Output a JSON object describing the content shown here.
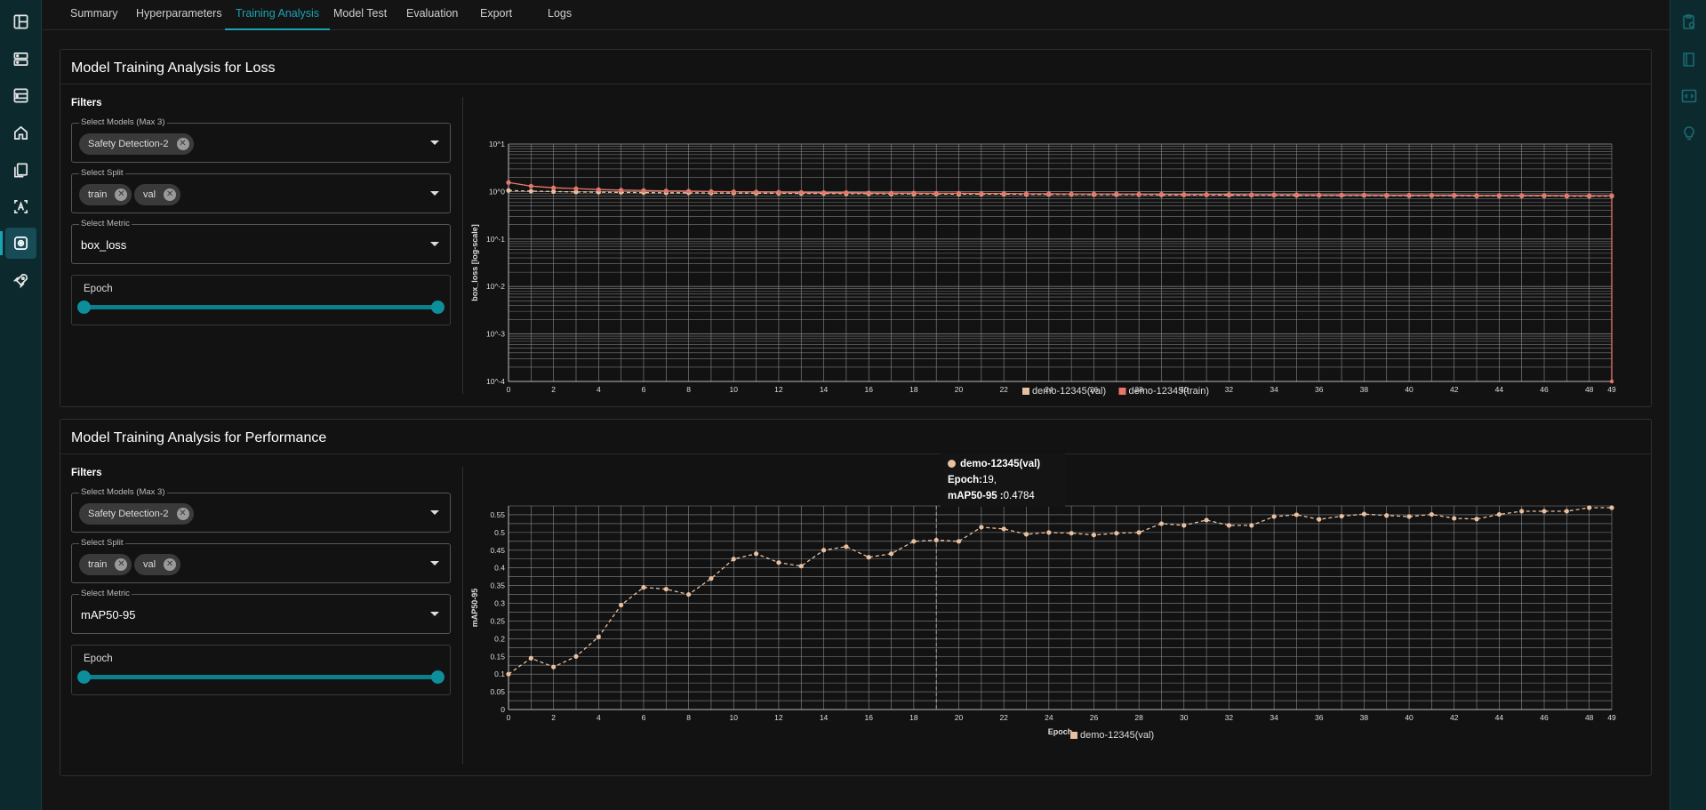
{
  "nav": {
    "tabs": [
      "Summary",
      "Hyperparameters",
      "Training Analysis",
      "Model Test",
      "Evaluation",
      "Export",
      "Logs"
    ],
    "active_tab": "Training Analysis"
  },
  "sidebar": {
    "icons": [
      "layout-icon",
      "server-icon",
      "database-icon",
      "home-icon",
      "documents-icon",
      "annotate-icon",
      "model-training-icon",
      "rocket-icon"
    ],
    "active": "model-training-icon"
  },
  "rightbar": {
    "icons": [
      "clipboard-settings-icon",
      "book-icon",
      "code-window-icon",
      "lightbulb-icon"
    ]
  },
  "loss_panel": {
    "title": "Model Training Analysis for Loss",
    "filters_label": "Filters",
    "models_label": "Select Models (Max 3)",
    "models": [
      "Safety Detection-2"
    ],
    "split_label": "Select Split",
    "splits": [
      "train",
      "val"
    ],
    "metric_label": "Select Metric",
    "metric_value": "box_loss",
    "epoch_label": "Epoch"
  },
  "perf_panel": {
    "title": "Model Training Analysis for Performance",
    "filters_label": "Filters",
    "models_label": "Select Models (Max 3)",
    "models": [
      "Safety Detection-2"
    ],
    "split_label": "Select Split",
    "splits": [
      "train",
      "val"
    ],
    "metric_label": "Select Metric",
    "metric_value": "mAP50-95",
    "epoch_label": "Epoch"
  },
  "colors": {
    "accent": "#1aa3b3",
    "val_series": "#e8c0a0",
    "train_series": "#e8776a"
  },
  "chart_data": [
    {
      "type": "line",
      "title": "",
      "xlabel": "Epoch",
      "ylabel": "box_loss [log-scale]",
      "yscale": "log",
      "ylim": [
        0.0001,
        10
      ],
      "y_ticks": [
        "10^1",
        "10^0",
        "10^-1",
        "10^-2",
        "10^-3",
        "10^-4"
      ],
      "x_ticks": [
        0,
        2,
        4,
        6,
        8,
        10,
        12,
        14,
        16,
        18,
        20,
        22,
        24,
        26,
        28,
        30,
        32,
        34,
        36,
        38,
        40,
        42,
        44,
        46,
        48,
        49
      ],
      "x": [
        0,
        1,
        2,
        3,
        4,
        5,
        6,
        7,
        8,
        9,
        10,
        11,
        12,
        13,
        14,
        15,
        16,
        17,
        18,
        19,
        20,
        21,
        22,
        23,
        24,
        25,
        26,
        27,
        28,
        29,
        30,
        31,
        32,
        33,
        34,
        35,
        36,
        37,
        38,
        39,
        40,
        41,
        42,
        43,
        44,
        45,
        46,
        47,
        48,
        49
      ],
      "series": [
        {
          "name": "demo-12345(val)",
          "values": [
            1.05,
            1.02,
            1.0,
            0.98,
            0.97,
            0.96,
            0.95,
            0.94,
            0.94,
            0.93,
            0.93,
            0.92,
            0.92,
            0.91,
            0.91,
            0.9,
            0.9,
            0.89,
            0.89,
            0.89,
            0.88,
            0.88,
            0.88,
            0.87,
            0.87,
            0.87,
            0.86,
            0.86,
            0.86,
            0.85,
            0.85,
            0.85,
            0.84,
            0.84,
            0.84,
            0.83,
            0.83,
            0.83,
            0.83,
            0.82,
            0.82,
            0.82,
            0.82,
            0.81,
            0.81,
            0.81,
            0.81,
            0.8,
            0.8,
            0.8
          ]
        },
        {
          "name": "demo-12345(train)",
          "values": [
            1.55,
            1.3,
            1.2,
            1.15,
            1.1,
            1.07,
            1.05,
            1.03,
            1.02,
            1.0,
            0.99,
            0.98,
            0.97,
            0.96,
            0.95,
            0.95,
            0.94,
            0.93,
            0.93,
            0.92,
            0.92,
            0.91,
            0.91,
            0.9,
            0.9,
            0.89,
            0.89,
            0.89,
            0.88,
            0.88,
            0.87,
            0.87,
            0.87,
            0.86,
            0.86,
            0.86,
            0.85,
            0.85,
            0.85,
            0.84,
            0.84,
            0.84,
            0.84,
            0.83,
            0.83,
            0.83,
            0.83,
            0.82,
            0.82,
            0.82
          ]
        }
      ],
      "legend": [
        "demo-12345(val)",
        "demo-12345(train)"
      ],
      "legend_position": "bottom-center",
      "grid": true
    },
    {
      "type": "line",
      "title": "",
      "xlabel": "Epoch",
      "ylabel": "mAP50-95",
      "ylim": [
        0,
        0.575
      ],
      "y_ticks": [
        "0.55",
        "0.5",
        "0.45",
        "0.4",
        "0.35",
        "0.3",
        "0.25",
        "0.2",
        "0.15",
        "0.1",
        "0.05",
        "0"
      ],
      "x_ticks": [
        0,
        2,
        4,
        6,
        8,
        10,
        12,
        14,
        16,
        18,
        20,
        22,
        24,
        26,
        28,
        30,
        32,
        34,
        36,
        38,
        40,
        42,
        44,
        46,
        48,
        49
      ],
      "x": [
        0,
        1,
        2,
        3,
        4,
        5,
        6,
        7,
        8,
        9,
        10,
        11,
        12,
        13,
        14,
        15,
        16,
        17,
        18,
        19,
        20,
        21,
        22,
        23,
        24,
        25,
        26,
        27,
        28,
        29,
        30,
        31,
        32,
        33,
        34,
        35,
        36,
        37,
        38,
        39,
        40,
        41,
        42,
        43,
        44,
        45,
        46,
        47,
        48,
        49
      ],
      "series": [
        {
          "name": "demo-12345(val)",
          "values": [
            0.1,
            0.145,
            0.12,
            0.15,
            0.205,
            0.295,
            0.345,
            0.34,
            0.325,
            0.37,
            0.425,
            0.44,
            0.415,
            0.405,
            0.45,
            0.46,
            0.43,
            0.44,
            0.475,
            0.4784,
            0.475,
            0.515,
            0.51,
            0.495,
            0.5,
            0.498,
            0.493,
            0.498,
            0.5,
            0.525,
            0.52,
            0.535,
            0.52,
            0.52,
            0.545,
            0.55,
            0.537,
            0.546,
            0.552,
            0.548,
            0.545,
            0.551,
            0.54,
            0.538,
            0.551,
            0.56,
            0.56,
            0.56,
            0.57,
            0.57
          ]
        }
      ],
      "legend": [
        "demo-12345(val)"
      ],
      "legend_position": "bottom-center",
      "grid": true,
      "tooltip": {
        "series": "demo-12345(val)",
        "epoch_label": "Epoch:",
        "epoch": "19,",
        "metric_label": "mAP50-95 :",
        "value": "0.4784"
      }
    }
  ]
}
